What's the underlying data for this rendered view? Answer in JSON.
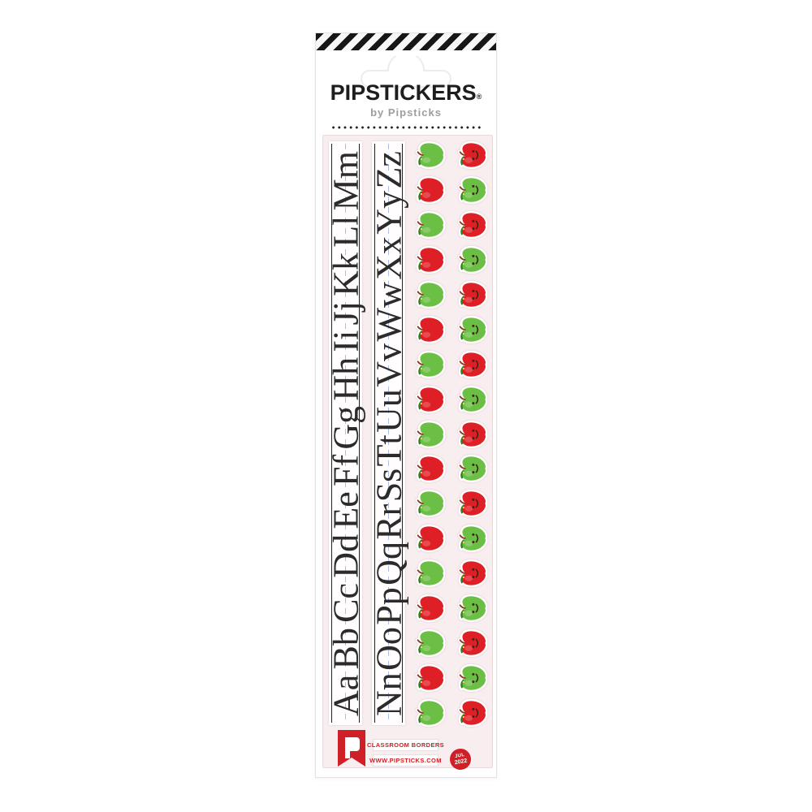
{
  "package": {
    "brand": "PIPSTICKERS",
    "registered_mark": "®",
    "byline": "by Pipsticks",
    "colors": {
      "brand_red": "#cf2027",
      "stripe_black": "#171717",
      "logo_black": "#1d1d1b",
      "byline_gray": "#9e9e9e"
    }
  },
  "sheet": {
    "background": "#f8eef0",
    "alphabet_strips": [
      {
        "name": "strip-a-to-m",
        "letters": [
          "Aa",
          "Bb",
          "Cc",
          "Dd",
          "Ee",
          "Ff",
          "Gg",
          "Hh",
          "Ii",
          "Jj",
          "Kk",
          "Ll",
          "Mm"
        ]
      },
      {
        "name": "strip-n-to-z",
        "letters": [
          "Nn",
          "Oo",
          "Pp",
          "Qq",
          "Rr",
          "Ss",
          "Tt",
          "Uu",
          "Vv",
          "Ww",
          "Xx",
          "Yy",
          "Zz"
        ]
      }
    ],
    "apple_columns": [
      {
        "count": 17,
        "first_color": "green",
        "has_faces": false
      },
      {
        "count": 17,
        "first_color": "red",
        "has_faces": true
      }
    ],
    "apple_colors": {
      "green": "#6cbf45",
      "red": "#df1f26",
      "leaf": "#2f7d26",
      "stem": "#8a3b20",
      "face": "#3a2417",
      "shine_dot": "#ffdf52"
    },
    "footer": {
      "logo_letter": "P",
      "title": "CLASSROOM BORDERS",
      "website": "WWW.PIPSTICKS.COM",
      "date_stamp": {
        "month": "JUL",
        "year": "2022"
      }
    }
  }
}
